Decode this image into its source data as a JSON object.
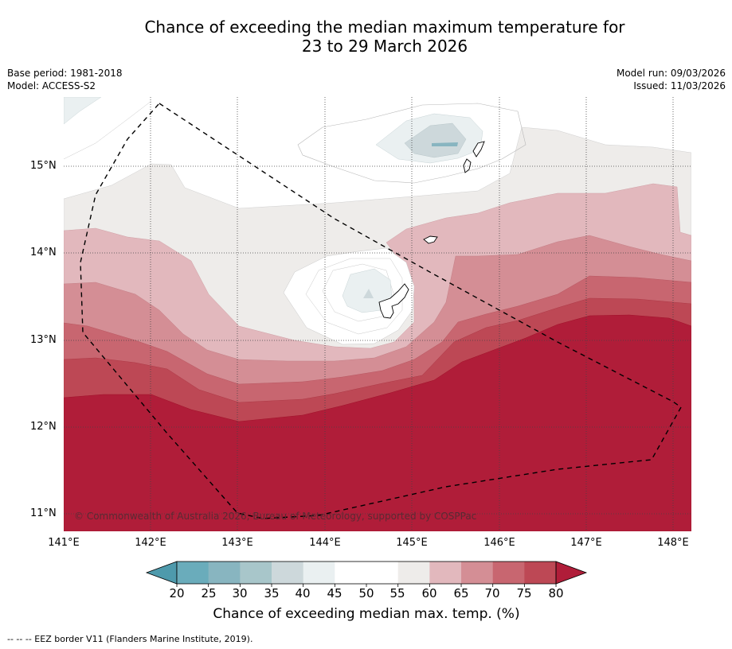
{
  "title_line1": "Chance of exceeding the median maximum temperature for",
  "title_line2": "23 to 29 March 2026",
  "base_period": "Base period: 1981-2018",
  "model": "Model: ACCESS-S2",
  "model_run": "Model run: 09/03/2026",
  "issued": "Issued: 11/03/2026",
  "latitudes": [
    "15°N",
    "14°N",
    "13°N",
    "12°N",
    "11°N"
  ],
  "longitudes": [
    "141°E",
    "142°E",
    "143°E",
    "144°E",
    "145°E",
    "146°E",
    "147°E",
    "148°E"
  ],
  "copyright": "© Commonwealth of Australia 2026, Bureau of Meteorology, supported by COSPPac",
  "colorbar": {
    "ticks": [
      "20",
      "25",
      "30",
      "35",
      "40",
      "45",
      "50",
      "55",
      "60",
      "65",
      "70",
      "75",
      "80"
    ],
    "colors": [
      "#4e9aac",
      "#6aacbb",
      "#88b5c0",
      "#a8c6ca",
      "#cdd8db",
      "#eaf0f1",
      "#ffffff",
      "#ffffff",
      "#eeecea",
      "#e2b8bd",
      "#d48e95",
      "#c86670",
      "#bd4855",
      "#b01d39"
    ],
    "title": "Chance of exceeding median max. temp. (%)"
  },
  "footnote": "--  --  -- EEZ border V11 (Flanders Marine Institute, 2019)."
}
